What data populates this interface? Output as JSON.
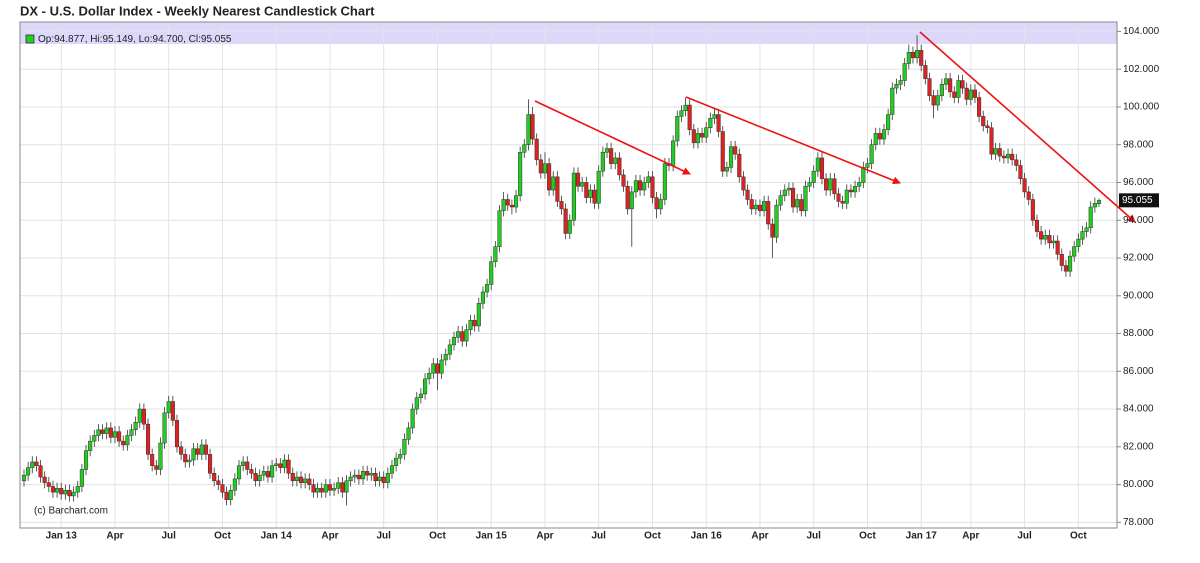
{
  "chart_data": {
    "type": "candlestick",
    "title": "DX - U.S. Dollar Index - Weekly Nearest Candlestick Chart",
    "ohlc_label": "Op:94.877, Hi:95.149, Lo:94.700, Cl:95.055",
    "last_label": "95.055",
    "credit": "(c) Barchart.com",
    "up_color": "#22cc22",
    "down_color": "#dd2222",
    "grid": true,
    "categories": [
      null,
      null,
      null,
      null,
      null,
      null,
      null,
      null,
      null,
      "Jan 13",
      null,
      null,
      null,
      null,
      null,
      null,
      null,
      null,
      null,
      null,
      null,
      null,
      "Apr",
      null,
      null,
      null,
      null,
      null,
      null,
      null,
      null,
      null,
      null,
      null,
      null,
      "Jul",
      null,
      null,
      null,
      null,
      null,
      null,
      null,
      null,
      null,
      null,
      null,
      null,
      "Oct",
      null,
      null,
      null,
      null,
      null,
      null,
      null,
      null,
      null,
      null,
      null,
      null,
      "Jan 14",
      null,
      null,
      null,
      null,
      null,
      null,
      null,
      null,
      null,
      null,
      null,
      null,
      "Apr",
      null,
      null,
      null,
      null,
      null,
      null,
      null,
      null,
      null,
      null,
      null,
      null,
      "Jul",
      null,
      null,
      null,
      null,
      null,
      null,
      null,
      null,
      null,
      null,
      null,
      null,
      "Oct",
      null,
      null,
      null,
      null,
      null,
      null,
      null,
      null,
      null,
      null,
      null,
      null,
      "Jan 15",
      null,
      null,
      null,
      null,
      null,
      null,
      null,
      null,
      null,
      null,
      null,
      null,
      "Apr",
      null,
      null,
      null,
      null,
      null,
      null,
      null,
      null,
      null,
      null,
      null,
      null,
      "Jul",
      null,
      null,
      null,
      null,
      null,
      null,
      null,
      null,
      null,
      null,
      null,
      null,
      "Oct",
      null,
      null,
      null,
      null,
      null,
      null,
      null,
      null,
      null,
      null,
      null,
      null,
      "Jan 16",
      null,
      null,
      null,
      null,
      null,
      null,
      null,
      null,
      null,
      null,
      null,
      null,
      "Apr",
      null,
      null,
      null,
      null,
      null,
      null,
      null,
      null,
      null,
      null,
      null,
      null,
      "Jul",
      null,
      null,
      null,
      null,
      null,
      null,
      null,
      null,
      null,
      null,
      null,
      null,
      "Oct",
      null,
      null,
      null,
      null,
      null,
      null,
      null,
      null,
      null,
      null,
      null,
      null,
      "Jan 17",
      null,
      null,
      null,
      null,
      null,
      null,
      null,
      null,
      null,
      null,
      null,
      "Apr",
      null,
      null,
      null,
      null,
      null,
      null,
      null,
      null,
      null,
      null,
      null,
      null,
      "Jul",
      null,
      null,
      null,
      null,
      null,
      null,
      null,
      null,
      null,
      null,
      null,
      null,
      "Oct",
      null,
      null,
      null,
      null,
      null
    ],
    "open": [
      80.2,
      80.5,
      80.9,
      81.2,
      81.0,
      80.4,
      80.1,
      79.9,
      79.6,
      79.8,
      79.5,
      79.7,
      79.4,
      79.6,
      79.9,
      80.8,
      81.8,
      82.3,
      82.6,
      82.9,
      82.7,
      83.0,
      82.5,
      82.8,
      82.3,
      82.1,
      82.6,
      82.9,
      83.3,
      84.0,
      83.2,
      81.6,
      81.0,
      80.8,
      82.2,
      83.8,
      84.4,
      83.4,
      82.0,
      81.6,
      81.2,
      81.3,
      81.9,
      81.6,
      82.1,
      81.6,
      80.6,
      80.2,
      80.0,
      79.6,
      79.2,
      79.7,
      80.3,
      81.0,
      81.2,
      80.8,
      80.6,
      80.2,
      80.5,
      80.7,
      80.4,
      81.0,
      81.1,
      80.9,
      81.3,
      80.6,
      80.2,
      80.4,
      80.1,
      80.3,
      80.0,
      79.6,
      79.8,
      79.6,
      80.0,
      79.7,
      79.8,
      80.1,
      79.6,
      80.2,
      80.4,
      80.5,
      80.3,
      80.7,
      80.5,
      80.6,
      80.2,
      80.4,
      80.1,
      80.6,
      81.0,
      81.4,
      81.6,
      82.4,
      83.0,
      84.0,
      84.6,
      84.8,
      85.6,
      85.9,
      86.4,
      85.9,
      86.6,
      86.9,
      87.4,
      87.8,
      88.1,
      87.6,
      88.2,
      88.7,
      88.4,
      89.6,
      90.2,
      90.6,
      91.8,
      92.6,
      94.5,
      95.1,
      94.8,
      94.7,
      95.3,
      97.6,
      98.0,
      99.6,
      98.3,
      97.2,
      96.5,
      97.0,
      95.6,
      96.3,
      95.0,
      94.6,
      93.3,
      94.0,
      96.5,
      95.8,
      96.0,
      95.2,
      95.6,
      94.9,
      96.6,
      97.6,
      97.8,
      97.0,
      97.3,
      96.4,
      95.8,
      94.6,
      95.5,
      96.1,
      95.6,
      96.0,
      96.3,
      95.2,
      94.6,
      95.1,
      97.0,
      96.9,
      98.2,
      99.5,
      99.8,
      100.1,
      98.8,
      98.1,
      98.6,
      98.4,
      98.9,
      99.4,
      99.6,
      98.7,
      96.6,
      96.8,
      97.9,
      97.5,
      96.3,
      95.6,
      95.1,
      94.6,
      94.8,
      94.5,
      95.0,
      93.8,
      93.1,
      94.8,
      95.3,
      95.6,
      95.7,
      94.7,
      95.1,
      94.5,
      95.8,
      96.0,
      96.6,
      97.3,
      96.2,
      95.6,
      96.2,
      95.4,
      95.0,
      94.9,
      95.6,
      95.5,
      95.8,
      96.0,
      96.8,
      97.0,
      98.0,
      98.6,
      98.3,
      98.8,
      99.6,
      101.0,
      101.2,
      101.4,
      102.3,
      102.9,
      102.6,
      103.0,
      102.2,
      101.5,
      100.6,
      100.1,
      100.6,
      101.2,
      101.5,
      100.8,
      100.5,
      101.4,
      101.0,
      100.4,
      100.9,
      100.5,
      99.5,
      99.0,
      98.9,
      97.5,
      97.8,
      97.4,
      97.3,
      97.5,
      97.2,
      96.9,
      96.2,
      95.5,
      95.1,
      94.0,
      93.4,
      93.0,
      93.2,
      92.8,
      92.9,
      92.2,
      91.6,
      91.3,
      92.1,
      92.6,
      93.0,
      93.4,
      93.6,
      94.7,
      94.877
    ],
    "high": [
      80.8,
      81.2,
      81.5,
      81.5,
      81.3,
      80.7,
      80.4,
      80.2,
      80.1,
      80.1,
      80.0,
      80.0,
      79.9,
      80.2,
      81.1,
      82.1,
      82.6,
      82.9,
      83.2,
      83.2,
      83.3,
      83.3,
      83.1,
      83.1,
      82.6,
      82.9,
      83.2,
      83.6,
      84.3,
      84.3,
      83.5,
      81.9,
      81.3,
      82.5,
      84.1,
      84.7,
      84.7,
      83.7,
      82.3,
      81.9,
      81.6,
      82.2,
      82.2,
      82.4,
      82.4,
      81.9,
      80.9,
      80.5,
      80.3,
      79.9,
      80.0,
      80.6,
      81.3,
      81.5,
      81.5,
      81.1,
      80.9,
      80.8,
      81.0,
      81.0,
      81.3,
      81.4,
      81.4,
      81.6,
      81.6,
      80.9,
      80.7,
      80.7,
      80.6,
      80.6,
      80.3,
      80.1,
      80.1,
      80.3,
      80.3,
      80.1,
      80.4,
      80.4,
      80.5,
      80.7,
      80.8,
      80.8,
      81.0,
      81.0,
      80.9,
      80.9,
      80.7,
      80.7,
      80.9,
      81.3,
      81.7,
      81.9,
      82.7,
      83.3,
      84.3,
      84.9,
      85.1,
      85.9,
      86.2,
      86.7,
      86.7,
      86.9,
      87.2,
      87.7,
      88.1,
      88.4,
      88.4,
      88.5,
      89.0,
      89.0,
      89.9,
      90.5,
      90.9,
      92.1,
      92.9,
      94.8,
      95.5,
      95.4,
      95.1,
      95.6,
      97.9,
      98.3,
      100.4,
      100.0,
      98.6,
      97.5,
      97.6,
      97.3,
      96.6,
      96.6,
      95.3,
      94.9,
      94.3,
      96.8,
      96.8,
      96.3,
      96.3,
      95.9,
      95.9,
      96.9,
      97.9,
      98.1,
      98.1,
      97.6,
      97.6,
      96.7,
      96.1,
      95.8,
      96.4,
      96.4,
      96.3,
      96.6,
      96.6,
      95.5,
      95.4,
      97.3,
      97.3,
      98.5,
      99.8,
      100.1,
      100.5,
      100.4,
      99.1,
      98.9,
      98.9,
      99.2,
      99.7,
      99.9,
      99.9,
      99.0,
      97.1,
      98.2,
      98.2,
      97.8,
      96.6,
      95.9,
      95.4,
      95.1,
      95.1,
      95.3,
      95.3,
      94.1,
      95.1,
      95.6,
      95.9,
      96.0,
      96.0,
      95.4,
      95.4,
      96.1,
      96.3,
      96.9,
      97.6,
      97.6,
      96.5,
      96.5,
      96.5,
      95.7,
      95.3,
      95.9,
      95.9,
      96.1,
      96.3,
      97.1,
      97.3,
      98.3,
      98.9,
      98.9,
      99.1,
      99.9,
      101.3,
      101.5,
      101.7,
      102.6,
      103.3,
      103.2,
      103.8,
      103.3,
      102.5,
      101.8,
      100.9,
      100.9,
      101.5,
      101.8,
      101.8,
      101.1,
      101.7,
      101.7,
      101.3,
      101.2,
      101.2,
      100.8,
      99.8,
      99.3,
      99.2,
      98.1,
      98.1,
      97.7,
      97.8,
      97.8,
      97.5,
      97.2,
      96.5,
      95.8,
      95.4,
      94.3,
      93.7,
      93.5,
      93.5,
      93.2,
      93.2,
      92.5,
      91.9,
      92.4,
      92.9,
      93.3,
      93.7,
      93.9,
      95.0,
      95.2,
      95.149
    ],
    "low": [
      79.9,
      80.2,
      80.6,
      80.7,
      80.1,
      79.8,
      79.6,
      79.3,
      79.3,
      79.2,
      79.2,
      79.1,
      79.1,
      79.3,
      79.6,
      80.5,
      81.5,
      82.0,
      82.3,
      82.4,
      82.4,
      82.2,
      82.2,
      82.0,
      81.8,
      81.8,
      82.3,
      82.6,
      83.0,
      82.9,
      81.3,
      80.7,
      80.5,
      80.5,
      81.9,
      83.5,
      83.1,
      81.7,
      81.3,
      80.9,
      80.9,
      81.0,
      81.3,
      81.3,
      81.3,
      80.3,
      79.9,
      79.7,
      79.3,
      78.9,
      78.9,
      79.4,
      80.0,
      80.7,
      80.5,
      80.3,
      79.9,
      79.9,
      80.2,
      80.1,
      80.1,
      80.7,
      80.6,
      80.6,
      80.3,
      79.9,
      79.9,
      79.8,
      79.8,
      79.7,
      79.3,
      79.3,
      79.3,
      79.3,
      79.4,
      79.4,
      79.5,
      79.3,
      78.9,
      79.9,
      80.1,
      80.0,
      80.0,
      80.2,
      80.2,
      79.9,
      79.9,
      79.8,
      79.8,
      80.3,
      80.7,
      81.1,
      81.3,
      82.1,
      82.7,
      83.7,
      84.3,
      84.5,
      85.3,
      85.6,
      85.0,
      85.6,
      86.3,
      86.6,
      87.1,
      87.5,
      87.3,
      87.3,
      87.9,
      88.1,
      88.1,
      89.3,
      89.9,
      90.3,
      91.5,
      92.3,
      94.2,
      94.5,
      94.3,
      94.4,
      95.0,
      97.3,
      97.7,
      98.0,
      96.9,
      96.2,
      96.2,
      95.3,
      95.3,
      94.7,
      94.3,
      93.0,
      93.0,
      93.7,
      95.5,
      95.5,
      94.9,
      94.9,
      94.6,
      94.6,
      96.3,
      97.3,
      96.7,
      96.7,
      96.1,
      95.5,
      94.3,
      92.6,
      95.2,
      95.3,
      95.3,
      95.7,
      94.9,
      94.1,
      94.3,
      94.8,
      96.6,
      96.6,
      97.9,
      99.2,
      99.5,
      98.5,
      97.8,
      97.8,
      98.1,
      98.1,
      98.6,
      99.1,
      98.4,
      96.3,
      96.3,
      96.5,
      97.2,
      96.0,
      95.3,
      94.8,
      94.3,
      94.3,
      94.2,
      94.2,
      93.5,
      92.0,
      92.8,
      94.5,
      95.0,
      95.3,
      94.4,
      94.4,
      94.2,
      94.2,
      95.5,
      95.7,
      96.3,
      95.9,
      95.3,
      95.3,
      95.1,
      94.7,
      94.6,
      94.6,
      95.2,
      95.2,
      95.5,
      95.7,
      96.5,
      96.7,
      97.7,
      98.0,
      98.0,
      98.5,
      99.3,
      100.7,
      100.9,
      101.1,
      102.0,
      102.3,
      102.3,
      101.9,
      101.2,
      100.3,
      99.4,
      99.8,
      100.3,
      100.9,
      100.5,
      100.2,
      100.2,
      100.7,
      100.1,
      100.1,
      100.2,
      99.2,
      98.7,
      98.6,
      97.2,
      97.2,
      97.1,
      97.0,
      97.0,
      96.9,
      96.6,
      95.9,
      95.2,
      94.8,
      93.7,
      93.1,
      92.7,
      92.7,
      92.5,
      92.5,
      91.9,
      91.3,
      91.0,
      91.0,
      91.8,
      92.3,
      92.7,
      93.1,
      93.3,
      94.4,
      94.7
    ],
    "close": [
      80.5,
      80.9,
      81.2,
      81.0,
      80.4,
      80.1,
      79.9,
      79.6,
      79.8,
      79.5,
      79.7,
      79.4,
      79.6,
      79.9,
      80.8,
      81.8,
      82.3,
      82.6,
      82.9,
      82.7,
      83.0,
      82.5,
      82.8,
      82.3,
      82.1,
      82.6,
      82.9,
      83.3,
      84.0,
      83.2,
      81.6,
      81.0,
      80.8,
      82.2,
      83.8,
      84.4,
      83.4,
      82.0,
      81.6,
      81.2,
      81.3,
      81.9,
      81.6,
      82.1,
      81.6,
      80.6,
      80.2,
      80.0,
      79.6,
      79.2,
      79.7,
      80.3,
      81.0,
      81.2,
      80.8,
      80.6,
      80.2,
      80.5,
      80.7,
      80.4,
      81.0,
      81.1,
      80.9,
      81.3,
      80.6,
      80.2,
      80.4,
      80.1,
      80.3,
      80.0,
      79.6,
      79.8,
      79.6,
      80.0,
      79.7,
      79.8,
      80.1,
      79.6,
      80.2,
      80.4,
      80.5,
      80.3,
      80.7,
      80.5,
      80.6,
      80.2,
      80.4,
      80.1,
      80.6,
      81.0,
      81.4,
      81.6,
      82.4,
      83.0,
      84.0,
      84.6,
      84.8,
      85.6,
      85.9,
      86.4,
      85.9,
      86.6,
      86.9,
      87.4,
      87.8,
      88.1,
      87.6,
      88.2,
      88.7,
      88.4,
      89.6,
      90.2,
      90.6,
      91.8,
      92.6,
      94.5,
      95.1,
      94.8,
      94.7,
      95.3,
      97.6,
      98.0,
      99.6,
      98.3,
      97.2,
      96.5,
      97.0,
      95.6,
      96.3,
      95.0,
      94.6,
      93.3,
      94.0,
      96.5,
      95.8,
      96.0,
      95.2,
      95.6,
      94.9,
      96.6,
      97.6,
      97.8,
      97.0,
      97.3,
      96.4,
      95.8,
      94.6,
      95.5,
      96.1,
      95.6,
      96.0,
      96.3,
      95.2,
      94.6,
      95.1,
      97.0,
      96.9,
      98.2,
      99.5,
      99.8,
      100.1,
      98.8,
      98.1,
      98.6,
      98.4,
      98.9,
      99.4,
      99.6,
      98.7,
      96.6,
      96.8,
      97.9,
      97.5,
      96.3,
      95.6,
      95.1,
      94.6,
      94.8,
      94.5,
      95.0,
      93.8,
      93.1,
      94.8,
      95.3,
      95.6,
      95.7,
      94.7,
      95.1,
      94.5,
      95.8,
      96.0,
      96.6,
      97.3,
      96.2,
      95.6,
      96.2,
      95.4,
      95.0,
      94.9,
      95.6,
      95.5,
      95.8,
      96.0,
      96.8,
      97.0,
      98.0,
      98.6,
      98.3,
      98.8,
      99.6,
      101.0,
      101.2,
      101.4,
      102.3,
      102.9,
      102.6,
      103.0,
      102.2,
      101.5,
      100.6,
      100.1,
      100.6,
      101.2,
      101.5,
      100.8,
      100.5,
      101.4,
      101.0,
      100.4,
      100.9,
      100.5,
      99.5,
      99.0,
      98.9,
      97.5,
      97.8,
      97.4,
      97.3,
      97.5,
      97.2,
      96.9,
      96.2,
      95.5,
      95.1,
      94.0,
      93.4,
      93.0,
      93.2,
      92.8,
      92.9,
      92.2,
      91.6,
      91.3,
      92.1,
      92.6,
      93.0,
      93.4,
      93.6,
      94.7,
      94.9,
      95.055
    ],
    "ylim": [
      77.7,
      104.5
    ],
    "yticks": [
      {
        "value": 78,
        "label": "78.000"
      },
      {
        "value": 80,
        "label": "80.000"
      },
      {
        "value": 82,
        "label": "82.000"
      },
      {
        "value": 84,
        "label": "84.000"
      },
      {
        "value": 86,
        "label": "86.000"
      },
      {
        "value": 88,
        "label": "88.000"
      },
      {
        "value": 90,
        "label": "90.000"
      },
      {
        "value": 92,
        "label": "92.000"
      },
      {
        "value": 94,
        "label": "94.000"
      },
      {
        "value": 96,
        "label": "96.000"
      },
      {
        "value": 98,
        "label": "98.000"
      },
      {
        "value": 100,
        "label": "100.000"
      },
      {
        "value": 102,
        "label": "102.000"
      },
      {
        "value": 104,
        "label": "104.000"
      }
    ]
  }
}
